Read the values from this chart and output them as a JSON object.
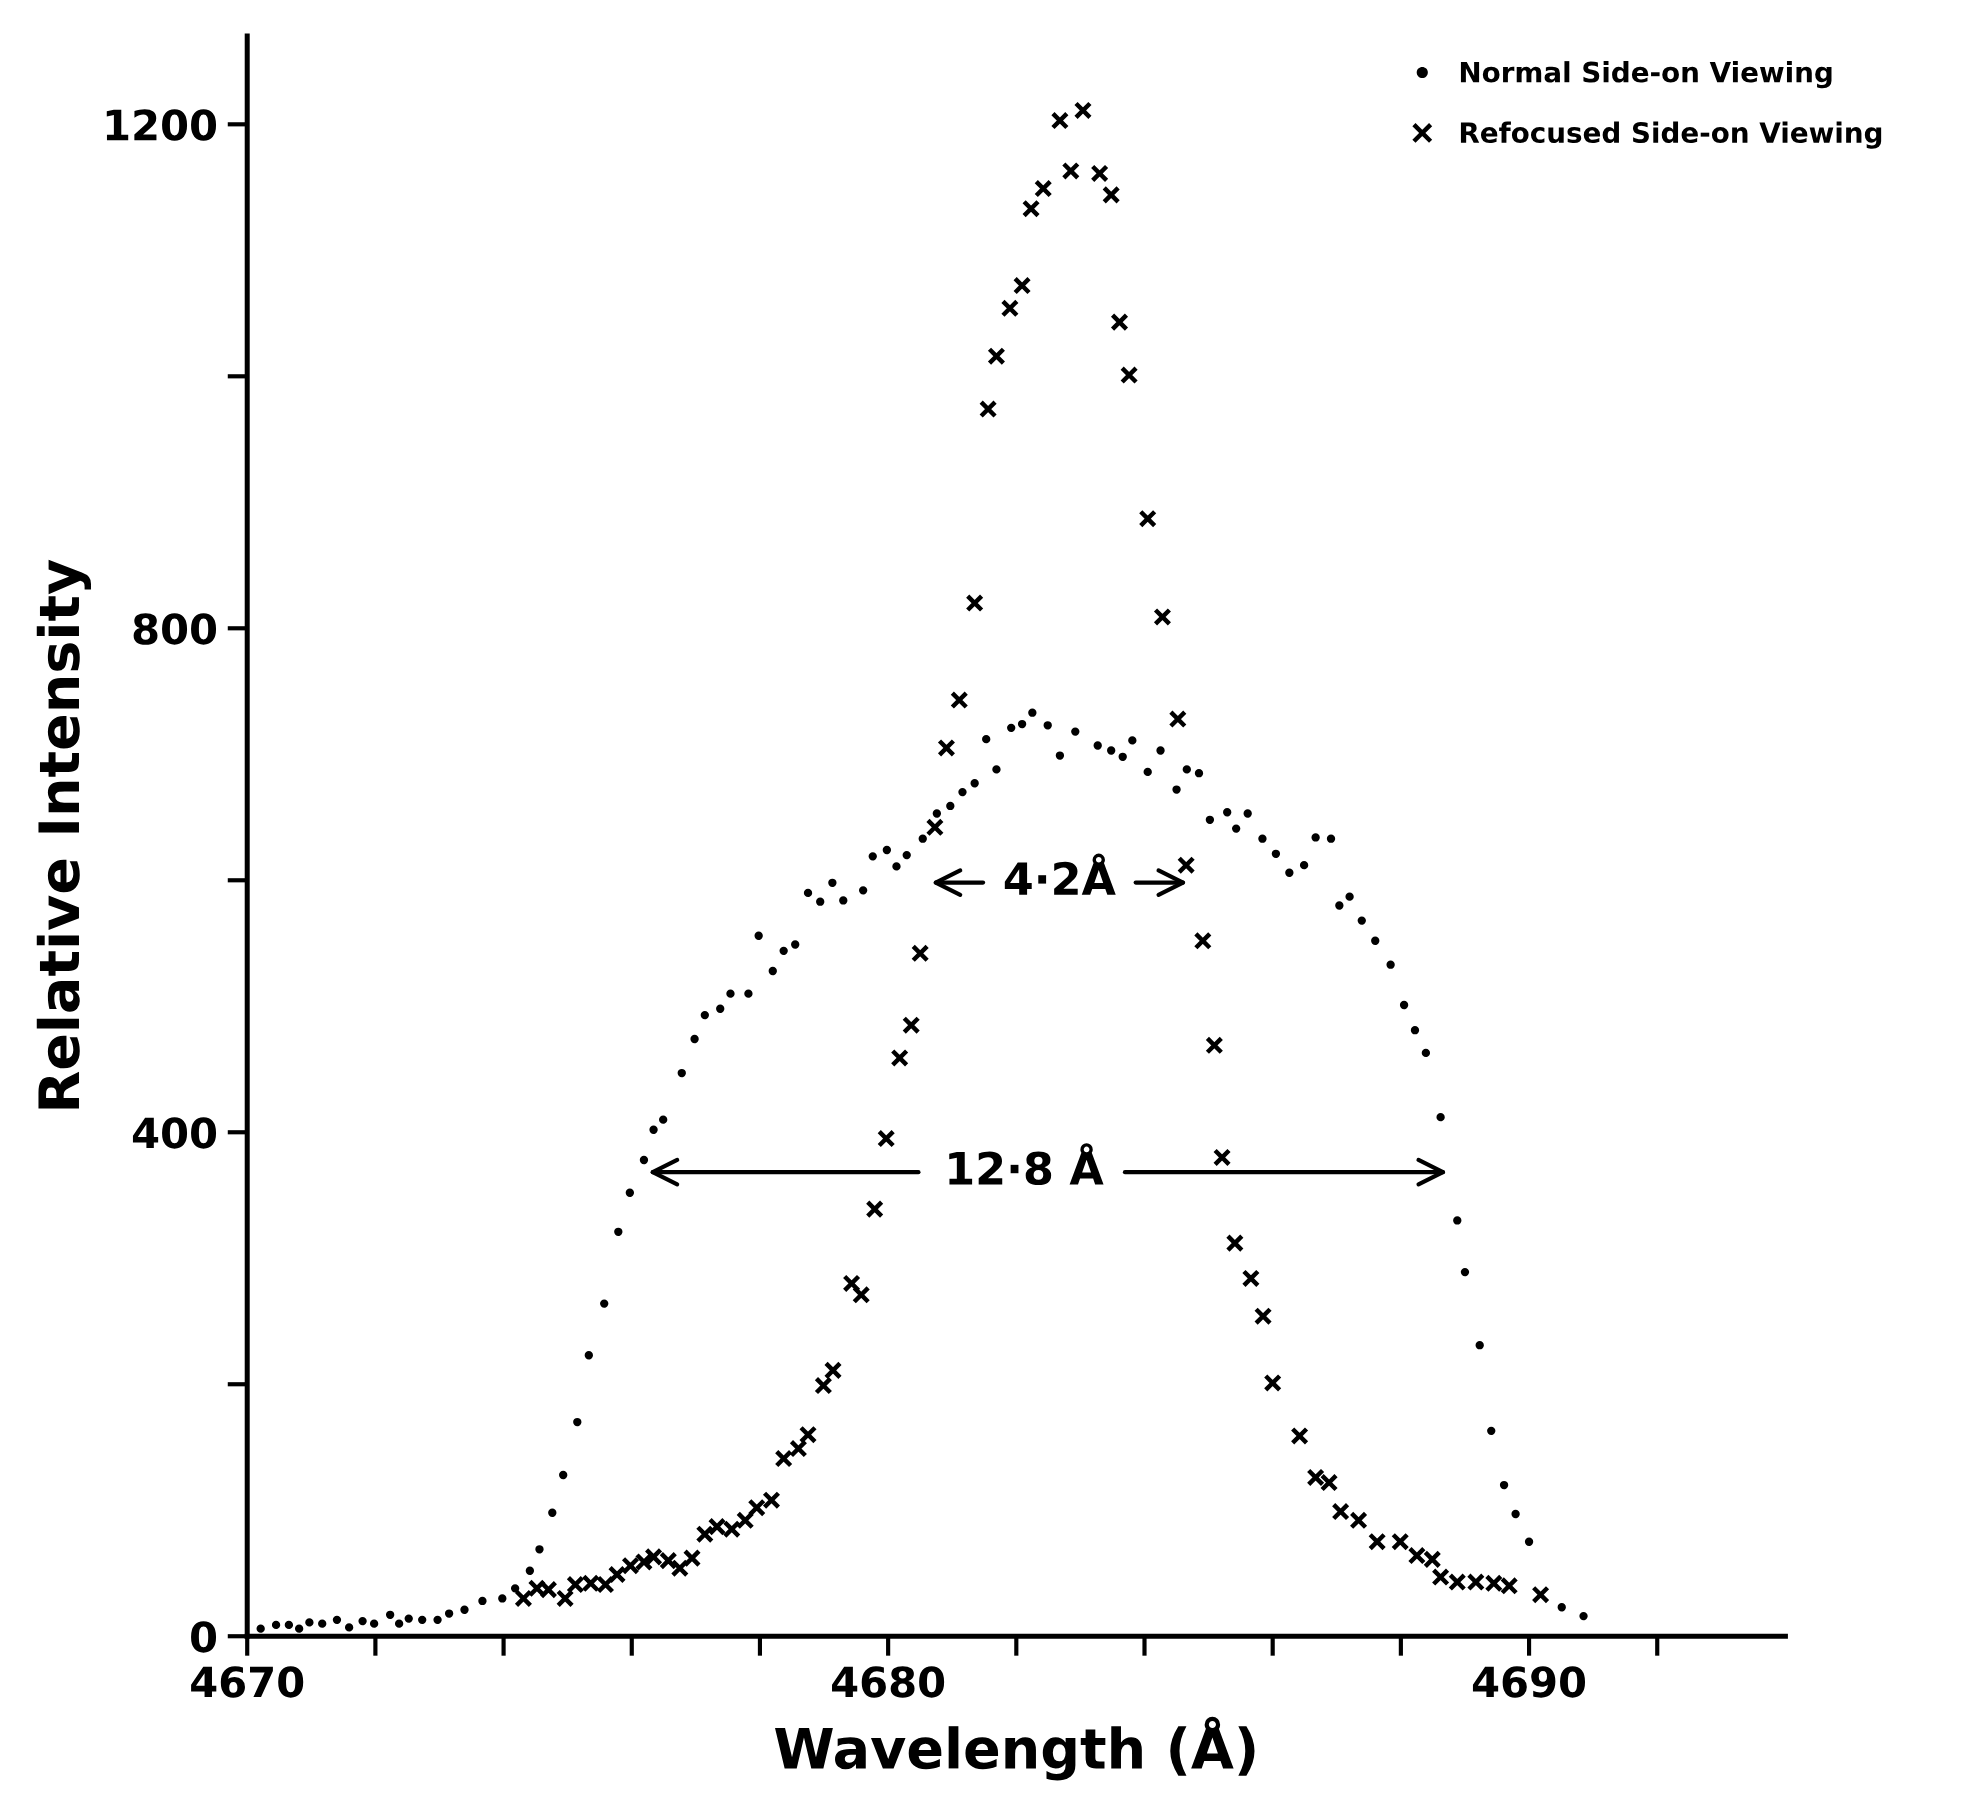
{
  "chart_data": {
    "type": "scatter",
    "xlabel": "Wavelength (Å)",
    "ylabel": "Relative Intensity",
    "xlim": [
      4670,
      4694
    ],
    "ylim": [
      0,
      1270
    ],
    "xticks": [
      4670,
      {
        "value": 4672,
        "label": null
      },
      {
        "value": 4674,
        "label": null
      },
      {
        "value": 4676,
        "label": null
      },
      {
        "value": 4678,
        "label": null
      },
      4680,
      {
        "value": 4682,
        "label": null
      },
      {
        "value": 4684,
        "label": null
      },
      {
        "value": 4686,
        "label": null
      },
      {
        "value": 4688,
        "label": null
      },
      4690,
      {
        "value": 4692,
        "label": null
      }
    ],
    "yticks": [
      0,
      {
        "value": 200,
        "label": null
      },
      400,
      {
        "value": 600,
        "label": null
      },
      800,
      {
        "value": 1000,
        "label": null
      },
      1200
    ],
    "grid": false,
    "legend": "top right",
    "series": [
      {
        "name": "Normal Side-on Viewing",
        "color": "#000000",
        "marker": "circle",
        "x": [
          4670.21,
          4670.45,
          4670.65,
          4670.81,
          4670.97,
          4671.17,
          4671.4,
          4671.59,
          4671.8,
          4671.98,
          4672.23,
          4672.37,
          4672.52,
          4672.73,
          4672.97,
          4673.15,
          4673.39,
          4673.67,
          4673.98,
          4674.18,
          4674.41,
          4674.56,
          4674.76,
          4674.93,
          4675.15,
          4675.33,
          4675.57,
          4675.79,
          4675.97,
          4676.19,
          4676.34,
          4676.49,
          4676.78,
          4676.98,
          4677.14,
          4677.38,
          4677.54,
          4677.82,
          4677.98,
          4678.2,
          4678.37,
          4678.55,
          4678.75,
          4678.94,
          4679.13,
          4679.3,
          4679.61,
          4679.76,
          4679.98,
          4680.13,
          4680.29,
          4680.54,
          4680.76,
          4680.97,
          4681.16,
          4681.35,
          4681.53,
          4681.69,
          4681.92,
          4682.09,
          4682.25,
          4682.49,
          4682.68,
          4682.92,
          4683.27,
          4683.48,
          4683.66,
          4683.81,
          4684.05,
          4684.25,
          4684.5,
          4684.66,
          4684.85,
          4685.02,
          4685.29,
          4685.43,
          4685.61,
          4685.84,
          4686.05,
          4686.26,
          4686.49,
          4686.67,
          4686.91,
          4687.04,
          4687.2,
          4687.39,
          4687.6,
          4687.84,
          4688.05,
          4688.22,
          4688.39,
          4688.62,
          4688.88,
          4689.0,
          4689.23,
          4689.41,
          4689.61,
          4689.79,
          4690.0,
          4690.51,
          4690.85
        ],
        "values": [
          6,
          9,
          9,
          6,
          11,
          10,
          13,
          7,
          12,
          10,
          17,
          10,
          14,
          13,
          13,
          18,
          21,
          28,
          30,
          38,
          52,
          69,
          98,
          128,
          170,
          223,
          264,
          321,
          352,
          378,
          402,
          410,
          447,
          474,
          493,
          498,
          510,
          510,
          556,
          528,
          544,
          549,
          590,
          583,
          598,
          584,
          592,
          619,
          624,
          611,
          620,
          633,
          653,
          659,
          670,
          677,
          712,
          688,
          721,
          724,
          733,
          723,
          699,
          718,
          707,
          703,
          698,
          711,
          686,
          703,
          672,
          688,
          685,
          648,
          654,
          641,
          653,
          633,
          621,
          606,
          612,
          634,
          633,
          580,
          587,
          568,
          552,
          533,
          501,
          481,
          463,
          412,
          330,
          289,
          231,
          163,
          120,
          97,
          75,
          23,
          16
        ]
      },
      {
        "name": "Refocused Side-on Viewing",
        "color": "#000000",
        "marker": "cross",
        "x": [
          4674.31,
          4674.52,
          4674.7,
          4674.96,
          4675.12,
          4675.36,
          4675.59,
          4675.77,
          4675.98,
          4676.19,
          4676.34,
          4676.57,
          4676.75,
          4676.94,
          4677.14,
          4677.33,
          4677.56,
          4677.77,
          4677.95,
          4678.18,
          4678.37,
          4678.6,
          4678.75,
          4678.99,
          4679.14,
          4679.43,
          4679.58,
          4679.79,
          4679.97,
          4680.18,
          4680.36,
          4680.5,
          4680.73,
          4680.91,
          4681.11,
          4681.35,
          4681.56,
          4681.69,
          4681.9,
          4682.09,
          4682.23,
          4682.42,
          4682.68,
          4682.85,
          4683.04,
          4683.3,
          4683.48,
          4683.61,
          4683.76,
          4684.05,
          4684.28,
          4684.52,
          4684.65,
          4684.91,
          4685.09,
          4685.21,
          4685.41,
          4685.66,
          4685.85,
          4686.0,
          4686.42,
          4686.67,
          4686.88,
          4687.06,
          4687.34,
          4687.63,
          4687.99,
          4688.25,
          4688.49,
          4688.62,
          4688.88,
          4689.17,
          4689.45,
          4689.69,
          4690.18
        ],
        "values": [
          30,
          38,
          37,
          30,
          41,
          42,
          41,
          49,
          56,
          59,
          63,
          60,
          54,
          62,
          81,
          87,
          85,
          92,
          102,
          108,
          141,
          149,
          160,
          199,
          211,
          280,
          271,
          339,
          395,
          459,
          485,
          542,
          642,
          705,
          743,
          820,
          974,
          1016,
          1054,
          1072,
          1133,
          1149,
          1203,
          1163,
          1211,
          1161,
          1144,
          1043,
          1001,
          887,
          809,
          728,
          612,
          552,
          469,
          380,
          312,
          284,
          254,
          201,
          159,
          126,
          122,
          99,
          92,
          75,
          75,
          64,
          61,
          47,
          43,
          43,
          42,
          40,
          33
        ]
      }
    ],
    "annotations": [
      "4·2Å",
      "12·8 Å"
    ]
  }
}
